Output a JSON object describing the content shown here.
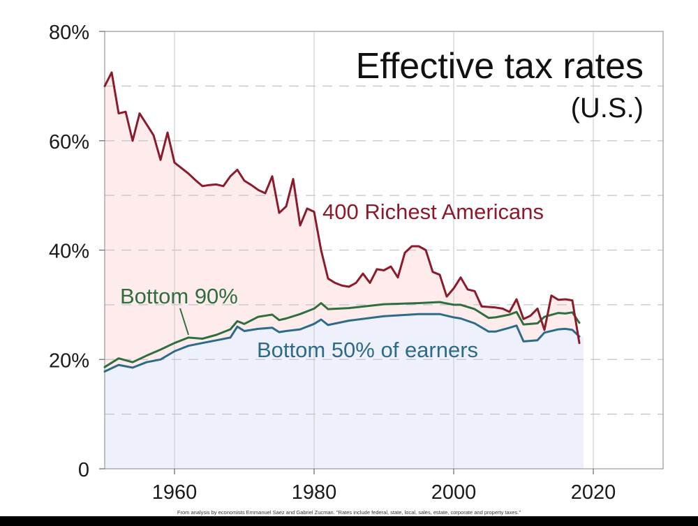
{
  "chart_data": {
    "type": "line",
    "title": "Effective tax rates",
    "subtitle": "(U.S.)",
    "xlabel": "",
    "ylabel": "",
    "xlim": [
      1950,
      2030
    ],
    "ylim": [
      0,
      80
    ],
    "xticks": [
      1960,
      1980,
      2000,
      2020
    ],
    "xtick_labels": [
      "1960",
      "1980",
      "2000",
      "2020"
    ],
    "yticks": [
      0,
      20,
      40,
      60,
      80
    ],
    "ytick_labels": [
      "0",
      "20%",
      "40%",
      "60%",
      "80%"
    ],
    "grid": true,
    "source_note": "From analysis by economists Emmanuel Saez and Gabriel Zucman. \"Rates include federal, state, local, sales, estate, corporate and property taxes.\"",
    "series": [
      {
        "name": "400 Richest Americans",
        "color": "#8b1a2b",
        "fill": "#fdeceb",
        "x": [
          1950,
          1951,
          1952,
          1953,
          1954,
          1955,
          1956,
          1957,
          1958,
          1959,
          1960,
          1961,
          1962,
          1963,
          1964,
          1965,
          1966,
          1967,
          1968,
          1969,
          1970,
          1971,
          1972,
          1973,
          1974,
          1975,
          1976,
          1977,
          1978,
          1979,
          1980,
          1981,
          1982,
          1983,
          1984,
          1985,
          1986,
          1987,
          1988,
          1989,
          1990,
          1991,
          1992,
          1993,
          1994,
          1995,
          1996,
          1997,
          1998,
          1999,
          2000,
          2001,
          2002,
          2003,
          2004,
          2005,
          2006,
          2007,
          2008,
          2009,
          2010,
          2011,
          2012,
          2013,
          2014,
          2015,
          2016,
          2017,
          2018
        ],
        "values": [
          70,
          72.5,
          65,
          65.3,
          60,
          65,
          63,
          61,
          56.5,
          61.5,
          56,
          55,
          54,
          52.8,
          51.7,
          51.9,
          52,
          51.7,
          53.5,
          54.7,
          52.7,
          51.9,
          51,
          50.4,
          53.5,
          46.8,
          48,
          53,
          44.5,
          47.6,
          47,
          40,
          34.8,
          34,
          33.5,
          33.3,
          34,
          35.7,
          34,
          36.5,
          36.3,
          37,
          35,
          39.5,
          40.7,
          40.7,
          40,
          36,
          35.5,
          31.5,
          33,
          35,
          32.8,
          32.5,
          29.7,
          29.6,
          29.5,
          29.3,
          28.7,
          31,
          27.4,
          28,
          29.3,
          25.4,
          31.7,
          30.9,
          31,
          30.8,
          23
        ]
      },
      {
        "name": "Bottom 90%",
        "color": "#2e6e3f",
        "fill": "none",
        "x": [
          1950,
          1952,
          1954,
          1956,
          1958,
          1960,
          1962,
          1964,
          1966,
          1968,
          1969,
          1970,
          1972,
          1974,
          1975,
          1976,
          1978,
          1980,
          1981,
          1982,
          1985,
          1990,
          1995,
          1998,
          2000,
          2001,
          2003,
          2005,
          2006,
          2008,
          2009,
          2010,
          2012,
          2013,
          2015,
          2016,
          2017,
          2018
        ],
        "values": [
          18.6,
          20.2,
          19.5,
          20.7,
          21.8,
          23,
          24,
          23.8,
          24.5,
          25.5,
          27,
          26.5,
          27.8,
          28.2,
          27.2,
          27.5,
          28.3,
          29.3,
          30.3,
          29.2,
          29.4,
          30.1,
          30.3,
          30.5,
          30,
          30,
          29.2,
          27.6,
          27.7,
          28.2,
          28.7,
          26.4,
          26.6,
          27.8,
          28.5,
          28.4,
          28.6,
          26.7
        ]
      },
      {
        "name": "Bottom 50% of earners",
        "color": "#2d6b8a",
        "fill": "#eef0fb",
        "x": [
          1950,
          1952,
          1954,
          1956,
          1958,
          1960,
          1962,
          1964,
          1966,
          1968,
          1969,
          1970,
          1972,
          1974,
          1975,
          1976,
          1978,
          1980,
          1981,
          1982,
          1985,
          1990,
          1995,
          1998,
          2000,
          2001,
          2003,
          2005,
          2006,
          2008,
          2009,
          2010,
          2012,
          2013,
          2015,
          2016,
          2017,
          2018
        ],
        "values": [
          17.8,
          19,
          18.5,
          19.5,
          20,
          21.5,
          22.5,
          23,
          23.5,
          24,
          26,
          25.2,
          25.6,
          25.8,
          25,
          25.2,
          25.5,
          26.5,
          27.3,
          26.3,
          27.1,
          27.9,
          28.3,
          28.3,
          27.7,
          27.5,
          26.6,
          25.1,
          25.1,
          25.8,
          26.2,
          23.3,
          23.5,
          24.9,
          25.5,
          25.6,
          25.4,
          24.2
        ]
      }
    ],
    "annotations": [
      {
        "text": "400 Richest Americans",
        "series": 0
      },
      {
        "text": "Bottom 90%",
        "series": 1
      },
      {
        "text": "Bottom 50% of earners",
        "series": 2
      }
    ]
  }
}
